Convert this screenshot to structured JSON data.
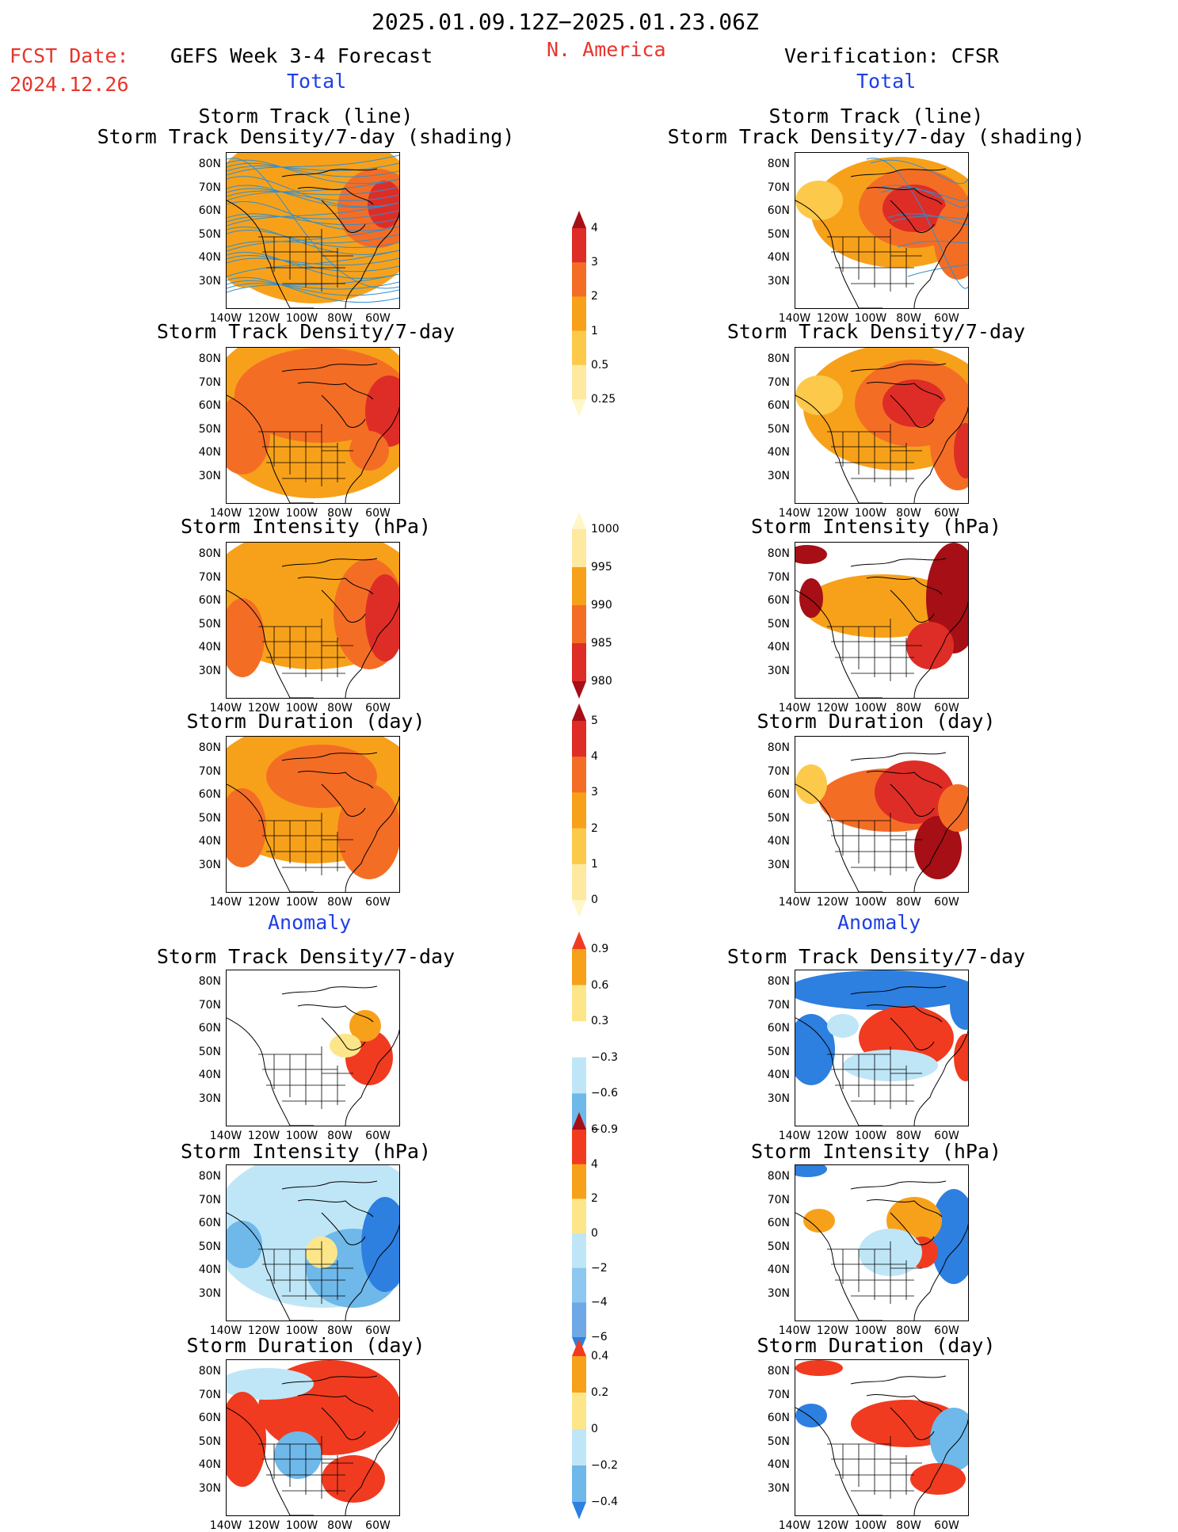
{
  "header": {
    "period": "2025.01.09.12Z−2025.01.23.06Z",
    "region": "N. America",
    "fcst_date_label": "FCST Date:",
    "fcst_date_value": "2024.12.26",
    "forecast_title": "GEFS Week 3-4 Forecast",
    "verification_title": "Verification: CFSR",
    "total_left": "Total",
    "total_right": "Total",
    "anomaly_left": "Anomaly",
    "anomaly_right": "Anomaly"
  },
  "panel_titles": {
    "track_line": "Storm Track (line)",
    "track_shading": "Storm Track Density/7-day (shading)",
    "density": "Storm Track Density/7-day",
    "intensity": "Storm Intensity (hPa)",
    "duration": "Storm Duration (day)"
  },
  "axes": {
    "lat_labels": [
      "80N",
      "70N",
      "60N",
      "50N",
      "40N",
      "30N"
    ],
    "lon_labels": [
      "140W",
      "120W",
      "100W",
      "80W",
      "60W"
    ]
  },
  "colorbars": {
    "density_total": {
      "labels": [
        "4",
        "3",
        "2",
        "1",
        "0.5",
        "0.25"
      ],
      "colors": [
        "#a50f15",
        "#de2d26",
        "#f46d25",
        "#f7a11a",
        "#fcc94a",
        "#fde9a0",
        "#fff7c8"
      ]
    },
    "intensity_total": {
      "labels": [
        "1000",
        "995",
        "990",
        "985",
        "980"
      ],
      "colors": [
        "#fff7c8",
        "#fde9a0",
        "#f7a11a",
        "#f46d25",
        "#de2d26",
        "#a50f15"
      ]
    },
    "duration_total": {
      "labels": [
        "5",
        "4",
        "3",
        "2",
        "1",
        "0"
      ],
      "colors": [
        "#a50f15",
        "#de2d26",
        "#f46d25",
        "#f7a11a",
        "#fcc94a",
        "#fde9a0",
        "#fff7c8"
      ]
    },
    "density_anom": {
      "labels": [
        "0.9",
        "0.6",
        "0.3",
        "−0.3",
        "−0.6",
        "−0.9"
      ],
      "colors": [
        "#f03b20",
        "#f7a11a",
        "#fde68a",
        "#ffffff",
        "#bfe6f7",
        "#6fb8ea",
        "#2d7fe0"
      ]
    },
    "intensity_anom": {
      "labels": [
        "6",
        "4",
        "2",
        "0",
        "−2",
        "−4",
        "−6"
      ],
      "colors": [
        "#a50f15",
        "#f03b20",
        "#f7a11a",
        "#fde68a",
        "#bfe6f7",
        "#8ec8f0",
        "#6fa8e6",
        "#2d7fe0"
      ]
    },
    "duration_anom": {
      "labels": [
        "0.4",
        "0.2",
        "0",
        "−0.2",
        "−0.4"
      ],
      "colors": [
        "#f03b20",
        "#f7a11a",
        "#fde68a",
        "#bfe6f7",
        "#6fb8ea",
        "#2d7fe0"
      ]
    }
  },
  "colors": {
    "red_text": "#e8352c",
    "blue_text": "#1f3fe6",
    "track_line": "#2f8fd0"
  }
}
